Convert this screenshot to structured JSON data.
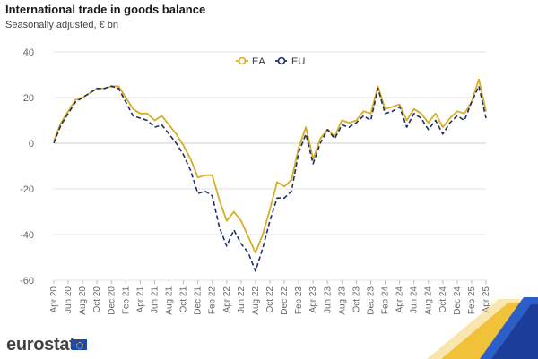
{
  "header": {
    "title": "International trade in goods balance",
    "subtitle": "Seasonally adjusted, € bn"
  },
  "brand": {
    "logo_text": "eurostat"
  },
  "colors": {
    "ea": "#d6ad25",
    "eu": "#1c2f6b",
    "grid": "#e3e3e3",
    "zero_line": "#cfcfcf"
  },
  "chart_data": {
    "type": "line",
    "title": "International trade in goods balance",
    "subtitle": "Seasonally adjusted, € bn",
    "xlabel": "",
    "ylabel": "",
    "ylim": [
      -60,
      40
    ],
    "yticks": [
      -60,
      -40,
      -20,
      0,
      20,
      40
    ],
    "grid": true,
    "legend": "top-center",
    "x_tick_labels": [
      "Apr 20",
      "Jun 20",
      "Aug 20",
      "Oct 20",
      "Dec 20",
      "Feb 21",
      "Apr 21",
      "Jun 21",
      "Aug 21",
      "Oct 21",
      "Dec 21",
      "Feb 22",
      "Apr 22",
      "Jun 22",
      "Aug 22",
      "Oct 22",
      "Dec 22",
      "Feb 23",
      "Apr 23",
      "Jun 23",
      "Aug 23",
      "Oct 23",
      "Dec 23",
      "Feb 24",
      "Apr 24",
      "Jun 24",
      "Aug 24",
      "Oct 24",
      "Dec 24",
      "Feb 25",
      "Apr 25"
    ],
    "series": [
      {
        "name": "EA",
        "style": "solid",
        "values": [
          1,
          9,
          14,
          19,
          20,
          22,
          24,
          24,
          25,
          25,
          20,
          15,
          13,
          13,
          10,
          12,
          8,
          4,
          -1,
          -7,
          -15,
          -14,
          -14,
          -25,
          -34,
          -30,
          -34,
          -41,
          -48,
          -40,
          -29,
          -17,
          -19,
          -16,
          -2,
          7,
          -7,
          2,
          6,
          3,
          10,
          9,
          10,
          14,
          13,
          25,
          15,
          16,
          17,
          10,
          15,
          13,
          9,
          13,
          7,
          11,
          14,
          13,
          18,
          28,
          14
        ]
      },
      {
        "name": "EU",
        "style": "dashed",
        "values": [
          0,
          8,
          13,
          18,
          20,
          22,
          24,
          24,
          25,
          24,
          18,
          12,
          11,
          10,
          7,
          8,
          4,
          0,
          -5,
          -12,
          -22,
          -21,
          -23,
          -37,
          -45,
          -38,
          -44,
          -48,
          -56,
          -46,
          -34,
          -24,
          -24,
          -21,
          -4,
          4,
          -9,
          0,
          6,
          2,
          8,
          7,
          9,
          12,
          10,
          24,
          13,
          14,
          16,
          7,
          13,
          11,
          6,
          10,
          4,
          9,
          12,
          10,
          18,
          25,
          11
        ]
      }
    ]
  }
}
